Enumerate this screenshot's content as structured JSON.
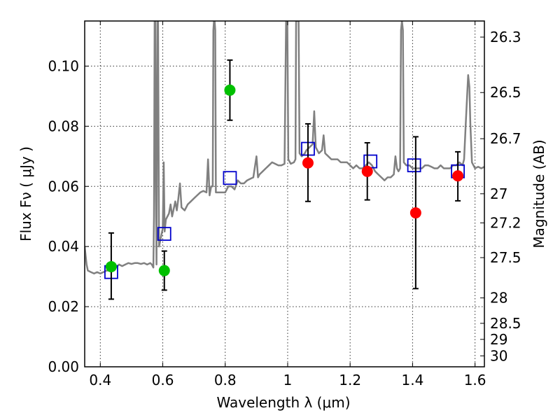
{
  "chart_data": {
    "type": "scatter",
    "title": "",
    "xlabel": "Wavelength  λ (μm)",
    "ylabel": "Flux  Fν  ( μJy )",
    "y2label": "Magnitude (AB)",
    "xlim": [
      0.35,
      1.63
    ],
    "ylim": [
      0.0,
      0.115
    ],
    "x_ticks": [
      "0.4",
      "0.6",
      "0.8",
      "1",
      "1.2",
      "1.4",
      "1.6"
    ],
    "y_ticks": [
      "0.00",
      "0.02",
      "0.04",
      "0.06",
      "0.08",
      "0.10"
    ],
    "y2_ticks": [
      {
        "label": "26.3",
        "mag": 26.3
      },
      {
        "label": "26.5",
        "mag": 26.5
      },
      {
        "label": "26.7",
        "mag": 26.7
      },
      {
        "label": "27",
        "mag": 27.0
      },
      {
        "label": "27.2",
        "mag": 27.2
      },
      {
        "label": "27.5",
        "mag": 27.5
      },
      {
        "label": "28",
        "mag": 28.0
      },
      {
        "label": "28.5",
        "mag": 28.5
      },
      {
        "label": "29",
        "mag": 29.0
      },
      {
        "label": "30",
        "mag": 30.0
      }
    ],
    "grid": true,
    "colors": {
      "model": "#808080",
      "green_points": "#00c000",
      "red_points": "#ff0000",
      "model_boxes": "#0000cc",
      "errorbar": "#000000"
    },
    "model_spectrum": [
      [
        0.35,
        0.04
      ],
      [
        0.356,
        0.034
      ],
      [
        0.36,
        0.032
      ],
      [
        0.37,
        0.0315
      ],
      [
        0.38,
        0.031
      ],
      [
        0.39,
        0.0315
      ],
      [
        0.4,
        0.031
      ],
      [
        0.41,
        0.0315
      ],
      [
        0.42,
        0.032
      ],
      [
        0.43,
        0.032
      ],
      [
        0.44,
        0.0325
      ],
      [
        0.45,
        0.033
      ],
      [
        0.46,
        0.034
      ],
      [
        0.47,
        0.0335
      ],
      [
        0.48,
        0.034
      ],
      [
        0.49,
        0.0345
      ],
      [
        0.5,
        0.0342
      ],
      [
        0.51,
        0.0345
      ],
      [
        0.52,
        0.0345
      ],
      [
        0.53,
        0.0342
      ],
      [
        0.54,
        0.0345
      ],
      [
        0.55,
        0.034
      ],
      [
        0.56,
        0.0345
      ],
      [
        0.565,
        0.034
      ],
      [
        0.57,
        0.033
      ],
      [
        0.572,
        0.05
      ],
      [
        0.574,
        0.115
      ],
      [
        0.576,
        0.115
      ],
      [
        0.578,
        0.06
      ],
      [
        0.58,
        0.034
      ],
      [
        0.583,
        0.115
      ],
      [
        0.585,
        0.115
      ],
      [
        0.588,
        0.04
      ],
      [
        0.592,
        0.042
      ],
      [
        0.596,
        0.044
      ],
      [
        0.6,
        0.046
      ],
      [
        0.603,
        0.068
      ],
      [
        0.606,
        0.045
      ],
      [
        0.61,
        0.049
      ],
      [
        0.62,
        0.051
      ],
      [
        0.625,
        0.054
      ],
      [
        0.63,
        0.05
      ],
      [
        0.64,
        0.055
      ],
      [
        0.645,
        0.052
      ],
      [
        0.65,
        0.056
      ],
      [
        0.655,
        0.061
      ],
      [
        0.66,
        0.053
      ],
      [
        0.67,
        0.052
      ],
      [
        0.68,
        0.054
      ],
      [
        0.69,
        0.055
      ],
      [
        0.7,
        0.056
      ],
      [
        0.71,
        0.057
      ],
      [
        0.72,
        0.058
      ],
      [
        0.73,
        0.0585
      ],
      [
        0.74,
        0.058
      ],
      [
        0.745,
        0.069
      ],
      [
        0.748,
        0.062
      ],
      [
        0.75,
        0.057
      ],
      [
        0.755,
        0.06
      ],
      [
        0.76,
        0.06
      ],
      [
        0.762,
        0.112
      ],
      [
        0.764,
        0.115
      ],
      [
        0.766,
        0.115
      ],
      [
        0.768,
        0.112
      ],
      [
        0.77,
        0.058
      ],
      [
        0.78,
        0.058
      ],
      [
        0.79,
        0.058
      ],
      [
        0.8,
        0.058
      ],
      [
        0.81,
        0.06
      ],
      [
        0.82,
        0.06
      ],
      [
        0.83,
        0.059
      ],
      [
        0.84,
        0.062
      ],
      [
        0.85,
        0.061
      ],
      [
        0.86,
        0.061
      ],
      [
        0.87,
        0.062
      ],
      [
        0.88,
        0.0625
      ],
      [
        0.89,
        0.063
      ],
      [
        0.9,
        0.07
      ],
      [
        0.905,
        0.063
      ],
      [
        0.91,
        0.064
      ],
      [
        0.92,
        0.065
      ],
      [
        0.93,
        0.066
      ],
      [
        0.94,
        0.067
      ],
      [
        0.95,
        0.068
      ],
      [
        0.96,
        0.0675
      ],
      [
        0.97,
        0.067
      ],
      [
        0.98,
        0.067
      ],
      [
        0.99,
        0.0675
      ],
      [
        0.995,
        0.115
      ],
      [
        0.999,
        0.115
      ],
      [
        1.002,
        0.069
      ],
      [
        1.01,
        0.0675
      ],
      [
        1.02,
        0.068
      ],
      [
        1.025,
        0.069
      ],
      [
        1.027,
        0.115
      ],
      [
        1.035,
        0.115
      ],
      [
        1.038,
        0.071
      ],
      [
        1.045,
        0.07
      ],
      [
        1.055,
        0.071
      ],
      [
        1.06,
        0.072
      ],
      [
        1.07,
        0.073
      ],
      [
        1.08,
        0.074
      ],
      [
        1.085,
        0.085
      ],
      [
        1.09,
        0.073
      ],
      [
        1.095,
        0.072
      ],
      [
        1.1,
        0.071
      ],
      [
        1.11,
        0.072
      ],
      [
        1.115,
        0.077
      ],
      [
        1.12,
        0.071
      ],
      [
        1.13,
        0.07
      ],
      [
        1.14,
        0.069
      ],
      [
        1.15,
        0.069
      ],
      [
        1.16,
        0.069
      ],
      [
        1.17,
        0.068
      ],
      [
        1.18,
        0.068
      ],
      [
        1.19,
        0.068
      ],
      [
        1.2,
        0.067
      ],
      [
        1.21,
        0.066
      ],
      [
        1.22,
        0.067
      ],
      [
        1.23,
        0.066
      ],
      [
        1.24,
        0.066
      ],
      [
        1.25,
        0.067
      ],
      [
        1.26,
        0.068
      ],
      [
        1.27,
        0.067
      ],
      [
        1.28,
        0.065
      ],
      [
        1.29,
        0.064
      ],
      [
        1.3,
        0.063
      ],
      [
        1.31,
        0.062
      ],
      [
        1.32,
        0.063
      ],
      [
        1.33,
        0.063
      ],
      [
        1.34,
        0.064
      ],
      [
        1.345,
        0.07
      ],
      [
        1.35,
        0.066
      ],
      [
        1.355,
        0.065
      ],
      [
        1.36,
        0.066
      ],
      [
        1.363,
        0.112
      ],
      [
        1.366,
        0.115
      ],
      [
        1.369,
        0.112
      ],
      [
        1.372,
        0.068
      ],
      [
        1.38,
        0.067
      ],
      [
        1.39,
        0.067
      ],
      [
        1.4,
        0.066
      ],
      [
        1.41,
        0.066
      ],
      [
        1.42,
        0.066
      ],
      [
        1.43,
        0.066
      ],
      [
        1.44,
        0.067
      ],
      [
        1.45,
        0.067
      ],
      [
        1.46,
        0.0665
      ],
      [
        1.47,
        0.066
      ],
      [
        1.48,
        0.066
      ],
      [
        1.49,
        0.067
      ],
      [
        1.5,
        0.066
      ],
      [
        1.51,
        0.066
      ],
      [
        1.52,
        0.066
      ],
      [
        1.53,
        0.067
      ],
      [
        1.54,
        0.067
      ],
      [
        1.55,
        0.068
      ],
      [
        1.56,
        0.067
      ],
      [
        1.565,
        0.069
      ],
      [
        1.57,
        0.08
      ],
      [
        1.575,
        0.091
      ],
      [
        1.578,
        0.097
      ],
      [
        1.582,
        0.093
      ],
      [
        1.585,
        0.081
      ],
      [
        1.59,
        0.068
      ],
      [
        1.6,
        0.066
      ],
      [
        1.61,
        0.0665
      ],
      [
        1.62,
        0.066
      ],
      [
        1.63,
        0.0665
      ]
    ],
    "model_boxes": [
      {
        "x": 0.435,
        "y": 0.0315
      },
      {
        "x": 0.605,
        "y": 0.0442
      },
      {
        "x": 0.815,
        "y": 0.0628
      },
      {
        "x": 1.065,
        "y": 0.0725
      },
      {
        "x": 1.265,
        "y": 0.0683
      },
      {
        "x": 1.405,
        "y": 0.067
      },
      {
        "x": 1.545,
        "y": 0.065
      }
    ],
    "green_points": [
      {
        "x": 0.435,
        "y": 0.0333,
        "lo": 0.0225,
        "hi": 0.0445
      },
      {
        "x": 0.605,
        "y": 0.032,
        "lo": 0.0255,
        "hi": 0.0385
      },
      {
        "x": 0.815,
        "y": 0.092,
        "lo": 0.082,
        "hi": 0.102
      }
    ],
    "red_points": [
      {
        "x": 1.065,
        "y": 0.0678,
        "lo": 0.055,
        "hi": 0.0808
      },
      {
        "x": 1.255,
        "y": 0.065,
        "lo": 0.0555,
        "hi": 0.0745
      },
      {
        "x": 1.41,
        "y": 0.0512,
        "lo": 0.026,
        "hi": 0.0765
      },
      {
        "x": 1.545,
        "y": 0.0635,
        "lo": 0.0552,
        "hi": 0.0715
      }
    ]
  }
}
